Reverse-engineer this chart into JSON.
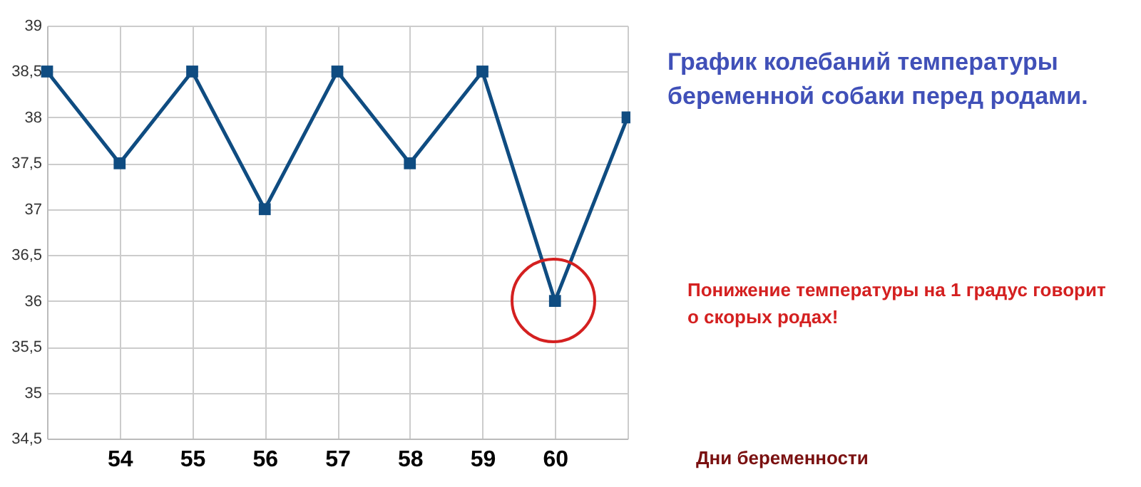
{
  "chart_data": {
    "type": "line",
    "title": "График колебаний температуры беременной собаки перед родами.",
    "xlabel": "Дни беременности",
    "categories": [
      null,
      "54",
      "55",
      "56",
      "57",
      "58",
      "59",
      "60",
      null
    ],
    "series": [
      {
        "color": "#0f4c81",
        "values": [
          38.5,
          37.5,
          38.5,
          37,
          38.5,
          37.5,
          38.5,
          36,
          38
        ]
      }
    ],
    "ylim": [
      34.5,
      39
    ],
    "yticks": [
      {
        "value": 34.5,
        "label": "34,5"
      },
      35,
      {
        "value": 35.5,
        "label": "35,5"
      },
      36,
      {
        "value": 36.5,
        "label": "36,5"
      },
      37,
      {
        "value": 37.5,
        "label": "37,5"
      },
      38,
      {
        "value": 38.5,
        "label": "38,5"
      },
      39
    ],
    "annotations": [
      "Понижение температуры на 1 градус говорит о скорых родах!"
    ],
    "grid": true,
    "marker": "square",
    "line_style": "solid"
  }
}
